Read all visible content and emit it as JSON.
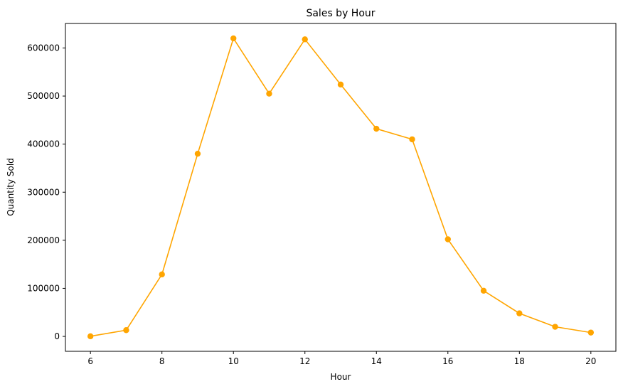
{
  "chart_data": {
    "type": "line",
    "title": "Sales by Hour",
    "xlabel": "Hour",
    "ylabel": "Quantity Sold",
    "x": [
      6,
      7,
      8,
      9,
      10,
      11,
      12,
      13,
      14,
      15,
      16,
      17,
      18,
      19,
      20
    ],
    "series": [
      {
        "values": [
          300,
          13000,
          129000,
          380000,
          620000,
          505000,
          618000,
          524000,
          432000,
          410000,
          202000,
          95000,
          48000,
          20000,
          8000
        ],
        "color": "#ffa500"
      }
    ],
    "xlim": [
      5.3,
      20.7
    ],
    "ylim": [
      -31000,
      651000
    ],
    "xticks": [
      6,
      8,
      10,
      12,
      14,
      16,
      18,
      20
    ],
    "yticks": [
      0,
      100000,
      200000,
      300000,
      400000,
      500000,
      600000
    ],
    "grid": false,
    "legend": "none"
  }
}
